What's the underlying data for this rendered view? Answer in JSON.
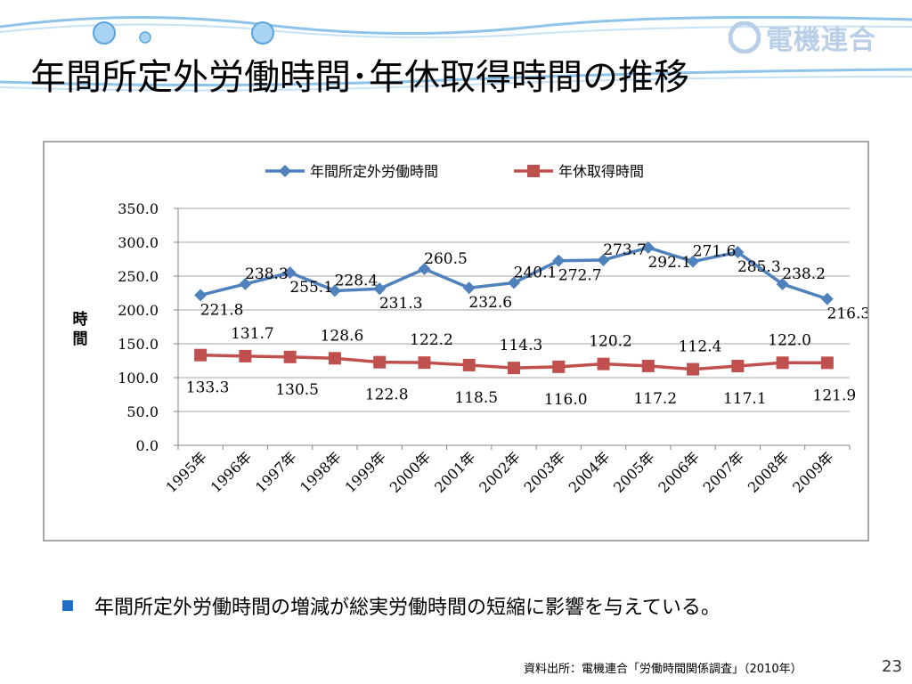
{
  "slide": {
    "title": "年間所定外労働時間･年休取得時間の推移",
    "logo_text": "電機連合",
    "bullet": "年間所定外労働時間の増減が総実労働時間の短縮に影響を与えている。",
    "source": "資料出所：電機連合「労働時間関係調査」（2010年）",
    "page_number": "23"
  },
  "colors": {
    "overtime_series": "#4f81bd",
    "leave_series": "#c0504d",
    "bullet": "#1f6fc5",
    "decoration": "#8ec3ea"
  },
  "chart_data": {
    "type": "line",
    "ylabel": "時間",
    "xlabel": "",
    "ylim": [
      0,
      350
    ],
    "yticks": [
      "0.0",
      "50.0",
      "100.0",
      "150.0",
      "200.0",
      "250.0",
      "300.0",
      "350.0"
    ],
    "categories": [
      "1995年",
      "1996年",
      "1997年",
      "1998年",
      "1999年",
      "2000年",
      "2001年",
      "2002年",
      "2003年",
      "2004年",
      "2005年",
      "2006年",
      "2007年",
      "2008年",
      "2009年"
    ],
    "legend_position": "top",
    "grid": true,
    "series": [
      {
        "name": "年間所定外労働時間",
        "values": [
          221.8,
          238.3,
          255.1,
          228.4,
          231.3,
          260.5,
          232.6,
          240.1,
          272.7,
          273.7,
          292.1,
          271.6,
          285.3,
          238.2,
          216.3
        ],
        "labels": [
          "221.8",
          "238.3",
          "255.1",
          "228.4",
          "231.3",
          "260.5",
          "232.6",
          "240.1",
          "272.7",
          "273.7",
          "292.1",
          "271.6",
          "285.3",
          "238.2",
          "216.3"
        ]
      },
      {
        "name": "年休取得時間",
        "values": [
          133.3,
          131.7,
          130.5,
          128.6,
          122.8,
          122.2,
          118.5,
          114.3,
          116.0,
          120.2,
          117.2,
          112.4,
          117.1,
          122.0,
          121.9
        ],
        "labels": [
          "133.3",
          "131.7",
          "130.5",
          "128.6",
          "122.8",
          "122.2",
          "118.5",
          "114.3",
          "116.0",
          "120.2",
          "117.2",
          "112.4",
          "117.1",
          "122.0",
          "121.9"
        ]
      }
    ]
  }
}
